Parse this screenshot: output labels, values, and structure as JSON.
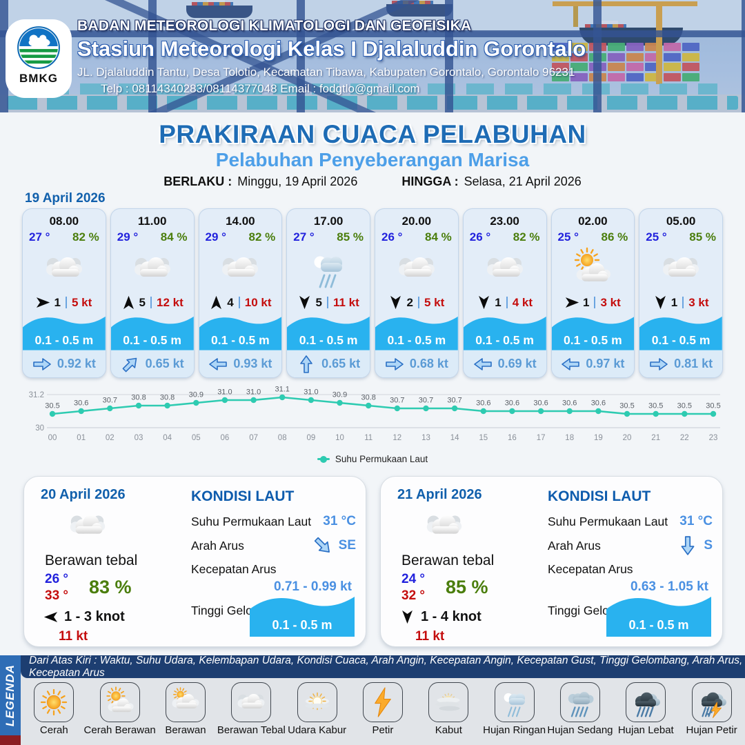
{
  "header": {
    "org": "BADAN METEOROLOGI KLIMATOLOGI DAN GEOFISIKA",
    "station": "Stasiun Meteorologi Kelas I Djalaluddin Gorontalo",
    "address": "JL. Djalaluddin Tantu, Desa Tolotio, Kecamatan Tibawa, Kabupaten Gorontalo, Gorontalo 96231",
    "contact": "Telp : 08114340283/08114377048 Email : fodgtlo@gmail.com",
    "logo_label": "BMKG"
  },
  "title": {
    "main": "PRAKIRAAN CUACA PELABUHAN",
    "sub": "Pelabuhan Penyeberangan Marisa",
    "valid_from_label": "BERLAKU :",
    "valid_from": "Minggu, 19 April 2026",
    "valid_to_label": "HINGGA :",
    "valid_to": "Selasa, 21 April 2026"
  },
  "forecast_date": "19 April 2026",
  "hourly": [
    {
      "time": "08.00",
      "temp": "27 °",
      "humidity": "82 %",
      "icon": "berawan-tebal",
      "wind_to": "E",
      "wind": "1",
      "gust": "5 kt",
      "wave": "0.1 - 0.5 m",
      "current_dir": "E",
      "current": "0.92 kt"
    },
    {
      "time": "11.00",
      "temp": "29 °",
      "humidity": "84 %",
      "icon": "berawan-tebal",
      "wind_to": "N",
      "wind": "5",
      "gust": "12 kt",
      "wave": "0.1 - 0.5 m",
      "current_dir": "NE",
      "current": "0.65 kt"
    },
    {
      "time": "14.00",
      "temp": "29 °",
      "humidity": "82 %",
      "icon": "berawan-tebal",
      "wind_to": "N",
      "wind": "4",
      "gust": "10 kt",
      "wave": "0.1 - 0.5 m",
      "current_dir": "W",
      "current": "0.93 kt"
    },
    {
      "time": "17.00",
      "temp": "27 °",
      "humidity": "85 %",
      "icon": "hujan-ringan",
      "wind_to": "S",
      "wind": "5",
      "gust": "11 kt",
      "wave": "0.1 - 0.5 m",
      "current_dir": "N",
      "current": "0.65 kt"
    },
    {
      "time": "20.00",
      "temp": "26 °",
      "humidity": "84 %",
      "icon": "berawan-tebal",
      "wind_to": "S",
      "wind": "2",
      "gust": "5 kt",
      "wave": "0.1 - 0.5 m",
      "current_dir": "E",
      "current": "0.68 kt"
    },
    {
      "time": "23.00",
      "temp": "26 °",
      "humidity": "82 %",
      "icon": "berawan-tebal",
      "wind_to": "S",
      "wind": "1",
      "gust": "4 kt",
      "wave": "0.1 - 0.5 m",
      "current_dir": "W",
      "current": "0.69 kt"
    },
    {
      "time": "02.00",
      "temp": "25 °",
      "humidity": "86 %",
      "icon": "cerah-berawan",
      "wind_to": "E",
      "wind": "1",
      "gust": "3 kt",
      "wave": "0.1 - 0.5 m",
      "current_dir": "W",
      "current": "0.97 kt"
    },
    {
      "time": "05.00",
      "temp": "25 °",
      "humidity": "85 %",
      "icon": "berawan-tebal",
      "wind_to": "S",
      "wind": "1",
      "gust": "3 kt",
      "wave": "0.1 - 0.5 m",
      "current_dir": "E",
      "current": "0.81 kt"
    }
  ],
  "chart_data": {
    "type": "line",
    "x": [
      "00",
      "01",
      "02",
      "03",
      "04",
      "05",
      "06",
      "07",
      "08",
      "09",
      "10",
      "11",
      "12",
      "13",
      "14",
      "15",
      "16",
      "17",
      "18",
      "19",
      "20",
      "21",
      "22",
      "23"
    ],
    "series": [
      {
        "name": "Suhu Permukaan Laut",
        "values": [
          30.5,
          30.6,
          30.7,
          30.8,
          30.8,
          30.9,
          31.0,
          31.0,
          31.1,
          31.0,
          30.9,
          30.8,
          30.7,
          30.7,
          30.7,
          30.6,
          30.6,
          30.6,
          30.6,
          30.6,
          30.5,
          30.5,
          30.5,
          30.5
        ]
      }
    ],
    "ylim": [
      30,
      31.2
    ],
    "yticks": [
      "30",
      "31.2"
    ],
    "grid": true,
    "legend_position": "bottom",
    "line_color": "#2ecbb1"
  },
  "days": [
    {
      "date": "20 April 2026",
      "icon": "berawan-tebal",
      "condition": "Berawan tebal",
      "temp_min": "26 °",
      "temp_max": "33 °",
      "humidity": "83 %",
      "wind_to": "W",
      "wind_range": "1 - 3 knot",
      "gust": "11 kt",
      "sea": {
        "title": "KONDISI LAUT",
        "sst_label": "Suhu Permukaan Laut",
        "sst": "31 °C",
        "dir_label": "Arah Arus",
        "current_dir": "SE",
        "speed_label": "Kecepatan Arus",
        "speed": "0.71 - 0.99 kt",
        "wave_label": "Tinggi Gelombang",
        "wave": "0.1 - 0.5 m"
      }
    },
    {
      "date": "21 April 2026",
      "icon": "berawan-tebal",
      "condition": "Berawan tebal",
      "temp_min": "24 °",
      "temp_max": "32 °",
      "humidity": "85 %",
      "wind_to": "S",
      "wind_range": "1 - 4 knot",
      "gust": "11 kt",
      "sea": {
        "title": "KONDISI LAUT",
        "sst_label": "Suhu Permukaan Laut",
        "sst": "31 °C",
        "dir_label": "Arah Arus",
        "current_dir": "S",
        "speed_label": "Kecepatan Arus",
        "speed": "0.63 - 1.05 kt",
        "wave_label": "Tinggi Gelombang",
        "wave": "0.1 - 0.5 m"
      }
    }
  ],
  "legend": {
    "strip_label": "LEGENDA",
    "description": "Dari Atas Kiri : Waktu, Suhu Udara, Kelembapan Udara, Kondisi Cuaca, Arah Angin, Kecepatan Angin, Kecepatan Gust, Tinggi Gelombang, Arah Arus, Kecepatan Arus",
    "items": [
      {
        "label": "Cerah",
        "icon": "cerah"
      },
      {
        "label": "Cerah Berawan",
        "icon": "cerah-berawan"
      },
      {
        "label": "Berawan",
        "icon": "berawan"
      },
      {
        "label": "Berawan Tebal",
        "icon": "berawan-tebal"
      },
      {
        "label": "Udara Kabur",
        "icon": "udara-kabur"
      },
      {
        "label": "Petir",
        "icon": "petir"
      },
      {
        "label": "Kabut",
        "icon": "kabut"
      },
      {
        "label": "Hujan Ringan",
        "icon": "hujan-ringan"
      },
      {
        "label": "Hujan Sedang",
        "icon": "hujan-sedang"
      },
      {
        "label": "Hujan Lebat",
        "icon": "hujan-lebat"
      },
      {
        "label": "Hujan Petir",
        "icon": "hujan-petir"
      }
    ]
  },
  "colors": {
    "title_blue": "#1e6cb5",
    "subtitle_blue": "#4d9fe8",
    "date_blue": "#1160ac",
    "temp_blue": "#2222dd",
    "humidity_green": "#4b7e0d",
    "gust_red": "#c40d0d",
    "wave_blue": "#29b2ef",
    "current_blue": "#5b9bd5",
    "kondisi_blue": "#0e5cad",
    "sea_blue": "#4a90e2",
    "line_teal": "#2ecbb1"
  }
}
